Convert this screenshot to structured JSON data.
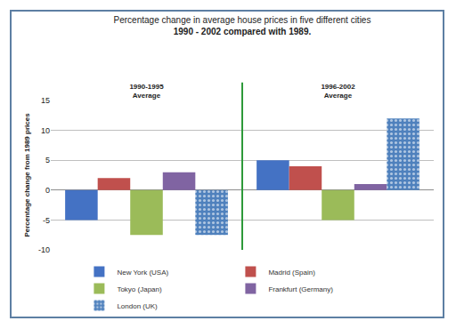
{
  "chart_data": {
    "type": "bar",
    "title": "Percentage change in average house prices in five different cities",
    "subtitle": "1990 - 2002 compared with 1989.",
    "y_label": "Percentage change from 1989 prices",
    "categories": [
      "1990-1995 Average",
      "1996-2002 Average"
    ],
    "series": [
      {
        "name": "New York (USA)",
        "color": "#4472c4",
        "values": [
          -5,
          5
        ]
      },
      {
        "name": "Madrid (Spain)",
        "color": "#c0504d",
        "values": [
          2,
          4
        ]
      },
      {
        "name": "Tokyo (Japan)",
        "color": "#9bbb59",
        "values": [
          -7.5,
          -5
        ]
      },
      {
        "name": "Frankfurt (Germany)",
        "color": "#8064a2",
        "values": [
          3,
          1
        ]
      },
      {
        "name": "London (UK)",
        "color": "#4f81bd",
        "marker": "dots",
        "values": [
          -7.5,
          12
        ]
      }
    ],
    "ylim": [
      -10,
      15
    ],
    "yticks": [
      -10,
      -5,
      0,
      5,
      10,
      15
    ],
    "grid": true,
    "legend": "bottom"
  }
}
